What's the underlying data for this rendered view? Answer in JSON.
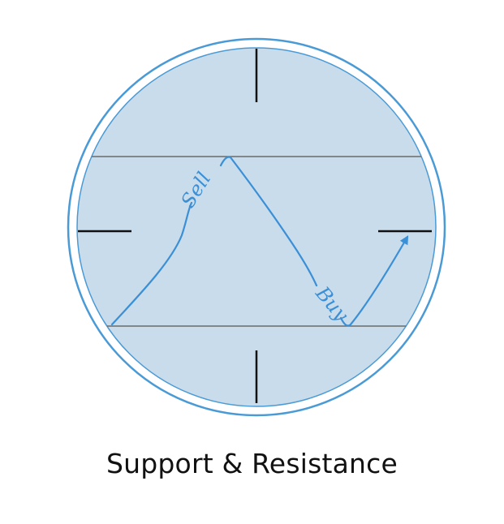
{
  "caption": "Support & Resistance",
  "labels": {
    "sell": "Sell",
    "buy": "Buy"
  },
  "colors": {
    "outer_ring": "#4a9ad6",
    "lens_fill": "#c9dceb",
    "level_line": "#6b6b6b",
    "crosshair": "#111111",
    "price_path": "#3a8fd6",
    "background": "#ffffff",
    "caption_text": "#111111"
  },
  "icons": [
    "crosshair-scope-icon",
    "arrow-up-right-icon"
  ]
}
